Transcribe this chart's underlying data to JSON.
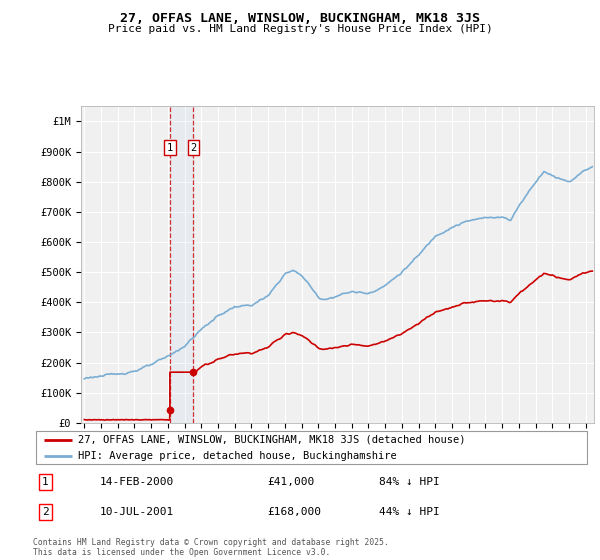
{
  "title": "27, OFFAS LANE, WINSLOW, BUCKINGHAM, MK18 3JS",
  "subtitle": "Price paid vs. HM Land Registry's House Price Index (HPI)",
  "ylabel_ticks": [
    0,
    100000,
    200000,
    300000,
    400000,
    500000,
    600000,
    700000,
    800000,
    900000,
    1000000
  ],
  "ylabel_labels": [
    "£0",
    "£100K",
    "£200K",
    "£300K",
    "£400K",
    "£500K",
    "£600K",
    "£700K",
    "£800K",
    "£900K",
    "£1M"
  ],
  "ylim": [
    0,
    1050000
  ],
  "xlim_start": 1994.8,
  "xlim_end": 2025.5,
  "hpi_color": "#7aadd4",
  "price_color": "#cc0000",
  "vline_color": "#cc0000",
  "background_color": "#f0f0f0",
  "sale1_x": 2000.12,
  "sale1_y": 41000,
  "sale2_x": 2001.53,
  "sale2_y": 168000,
  "sale1_label": "1",
  "sale2_label": "2",
  "sale1_date": "14-FEB-2000",
  "sale1_price": "£41,000",
  "sale1_hpi": "84% ↓ HPI",
  "sale2_date": "10-JUL-2001",
  "sale2_price": "£168,000",
  "sale2_hpi": "44% ↓ HPI",
  "legend1": "27, OFFAS LANE, WINSLOW, BUCKINGHAM, MK18 3JS (detached house)",
  "legend2": "HPI: Average price, detached house, Buckinghamshire",
  "footnote": "Contains HM Land Registry data © Crown copyright and database right 2025.\nThis data is licensed under the Open Government Licence v3.0."
}
